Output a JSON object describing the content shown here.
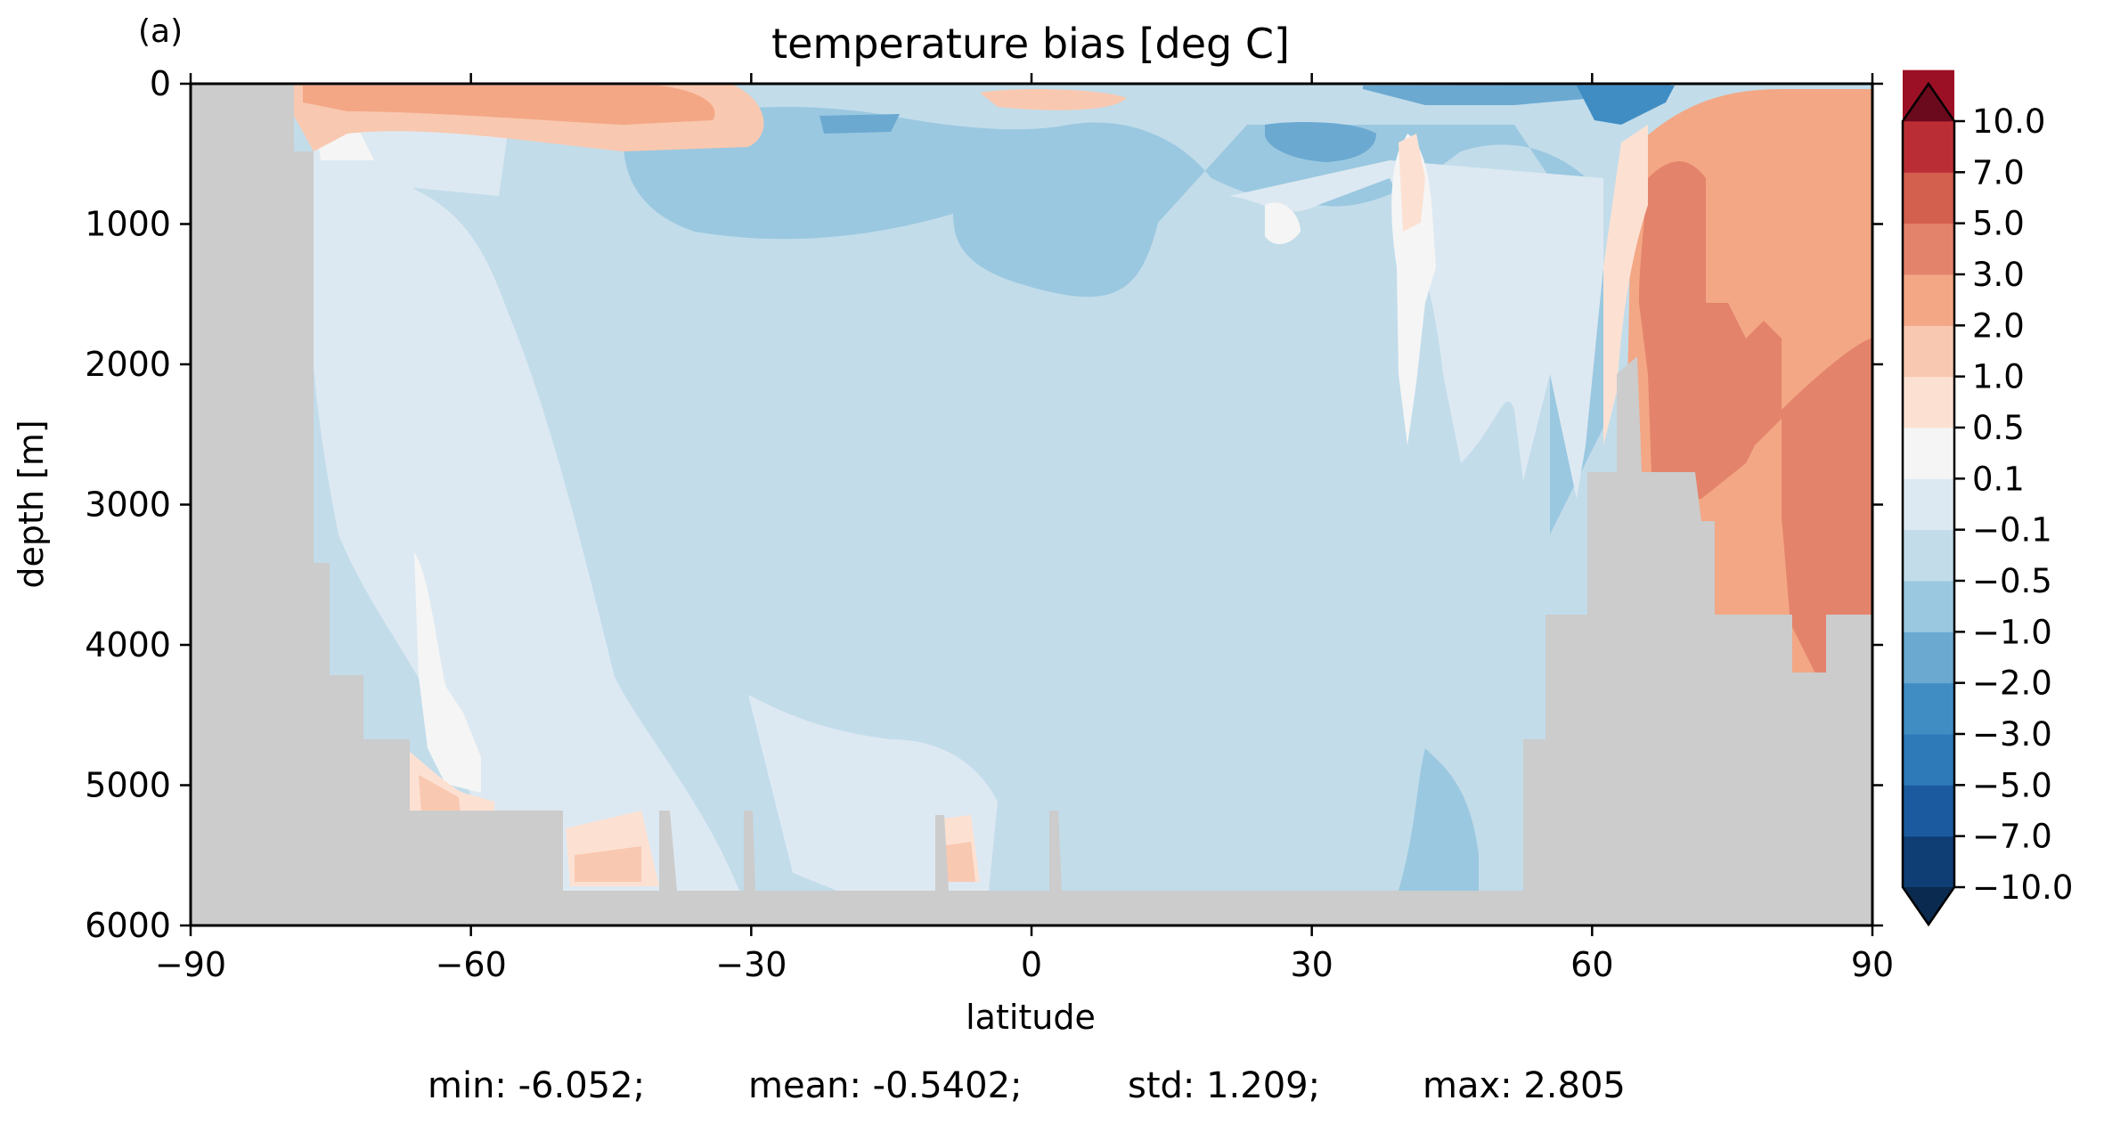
{
  "chart_data": {
    "type": "heatmap",
    "panel_label": "(a)",
    "title": "temperature bias [deg C]",
    "xlabel": "latitude",
    "ylabel": "depth [m]",
    "xlim": [
      -90,
      90
    ],
    "ylim": [
      6000,
      0
    ],
    "x_ticks": [
      -90,
      -60,
      -30,
      0,
      30,
      60,
      90
    ],
    "x_tick_labels": [
      "−90",
      "−60",
      "−30",
      "0",
      "30",
      "60",
      "90"
    ],
    "y_ticks": [
      0,
      1000,
      2000,
      3000,
      4000,
      5000,
      6000
    ],
    "y_tick_labels": [
      "0",
      "1000",
      "2000",
      "3000",
      "4000",
      "5000",
      "6000"
    ],
    "colorbar": {
      "extend": "both",
      "levels": [
        -10.0,
        -7.0,
        -5.0,
        -3.0,
        -2.0,
        -1.0,
        -0.5,
        -0.1,
        0.1,
        0.5,
        1.0,
        2.0,
        3.0,
        5.0,
        7.0,
        10.0
      ],
      "tick_labels": [
        "−10.0",
        "−7.0",
        "−5.0",
        "−3.0",
        "−2.0",
        "−1.0",
        "−0.5",
        "−0.1",
        "0.1",
        "0.5",
        "1.0",
        "2.0",
        "3.0",
        "5.0",
        "7.0",
        "10.0"
      ],
      "colors": [
        "#0e3e73",
        "#1b5a9e",
        "#2e79b7",
        "#3f8dc3",
        "#6ba9d1",
        "#9ac8e0",
        "#c2dcea",
        "#dde9f2",
        "#f5f5f5",
        "#fce1d3",
        "#f9c8b0",
        "#f3a785",
        "#e4836b",
        "#d35f4e",
        "#bb2d34",
        "#9b1025"
      ],
      "under_color": "#0a2a4f",
      "over_color": "#6a0a1c"
    },
    "land_color": "#cccccc",
    "stats": {
      "min": "min: -6.052;",
      "mean": "mean: -0.5402;",
      "std": "std: 1.209;",
      "max": "max: 2.805"
    }
  }
}
